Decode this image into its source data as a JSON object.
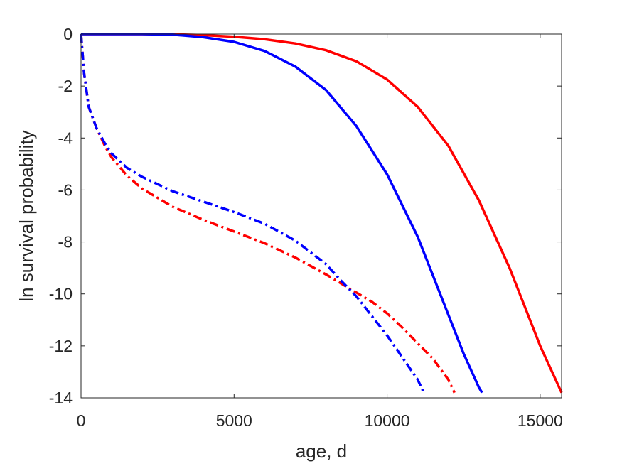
{
  "chart_data": {
    "type": "line",
    "title": "",
    "xlabel": "age, d",
    "ylabel": "ln survival probability",
    "xlim": [
      0,
      15700
    ],
    "ylim": [
      -14,
      0
    ],
    "xticks": [
      0,
      5000,
      10000,
      15000
    ],
    "xtick_labels": [
      "0",
      "5000",
      "10000",
      "15000"
    ],
    "yticks": [
      0,
      -2,
      -4,
      -6,
      -8,
      -10,
      -12,
      -14
    ],
    "ytick_labels": [
      "0",
      "-2",
      "-4",
      "-6",
      "-8",
      "-10",
      "-12",
      "-14"
    ],
    "grid": false,
    "legend": "none",
    "series": [
      {
        "color": "#ff0000",
        "style": "solid",
        "x": [
          0,
          1000,
          2000,
          3000,
          4000,
          5000,
          6000,
          7000,
          8000,
          9000,
          10000,
          11000,
          12000,
          13000,
          14000,
          15000,
          15700
        ],
        "y": [
          0,
          0,
          0,
          -0.01,
          -0.04,
          -0.1,
          -0.2,
          -0.36,
          -0.62,
          -1.05,
          -1.75,
          -2.8,
          -4.3,
          -6.4,
          -9.0,
          -12.0,
          -13.8
        ]
      },
      {
        "color": "#0000ff",
        "style": "solid",
        "x": [
          0,
          1000,
          2000,
          3000,
          4000,
          5000,
          6000,
          7000,
          8000,
          9000,
          10000,
          11000,
          12000,
          12500,
          13000,
          13100
        ],
        "y": [
          0,
          0,
          0,
          -0.02,
          -0.12,
          -0.3,
          -0.65,
          -1.25,
          -2.15,
          -3.55,
          -5.4,
          -7.8,
          -10.8,
          -12.3,
          -13.6,
          -13.8
        ]
      },
      {
        "color": "#ff0000",
        "style": "dashdot",
        "x": [
          0,
          100,
          250,
          500,
          800,
          1000,
          1500,
          2000,
          3000,
          4000,
          5000,
          6000,
          7000,
          8000,
          8500,
          9000,
          9500,
          10000,
          10500,
          11000,
          11500,
          12000,
          12200
        ],
        "y": [
          0,
          -1.5,
          -2.8,
          -3.6,
          -4.35,
          -4.75,
          -5.45,
          -5.95,
          -6.65,
          -7.15,
          -7.6,
          -8.05,
          -8.6,
          -9.25,
          -9.6,
          -9.95,
          -10.3,
          -10.75,
          -11.3,
          -11.9,
          -12.5,
          -13.3,
          -13.8
        ]
      },
      {
        "color": "#0000ff",
        "style": "dashdot",
        "x": [
          0,
          100,
          250,
          500,
          800,
          1000,
          1500,
          2000,
          3000,
          4000,
          5000,
          6000,
          7000,
          8000,
          8500,
          9000,
          9500,
          10000,
          10500,
          11000,
          11200
        ],
        "y": [
          0,
          -1.5,
          -2.8,
          -3.6,
          -4.25,
          -4.6,
          -5.15,
          -5.5,
          -6.05,
          -6.45,
          -6.85,
          -7.3,
          -7.95,
          -8.85,
          -9.5,
          -10.1,
          -10.85,
          -11.6,
          -12.45,
          -13.3,
          -13.8
        ]
      }
    ]
  }
}
